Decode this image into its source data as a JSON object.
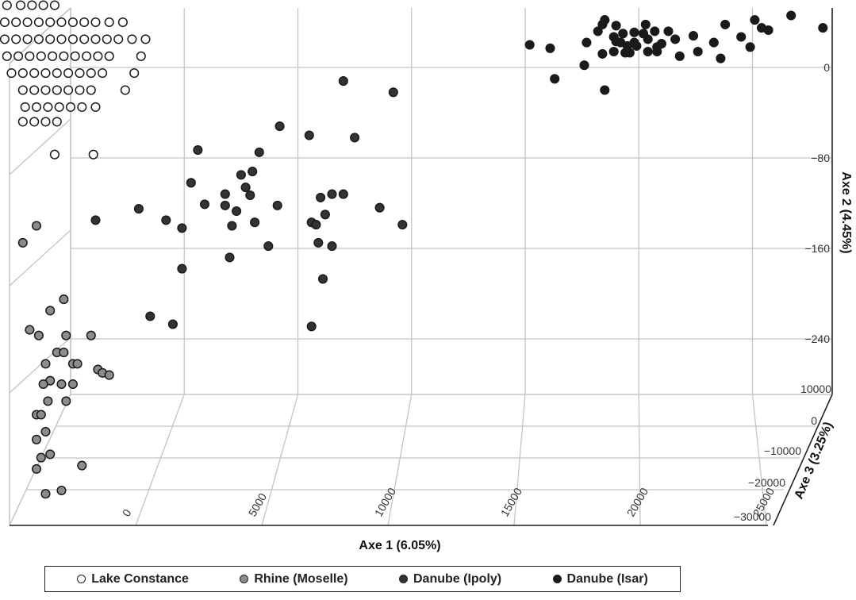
{
  "chart_data": {
    "type": "scatter",
    "projection": "3d",
    "xlabel": "Axe 1 (6.05%)",
    "ylabel": "Axe 2 (4.45%)",
    "zlabel": "Axe 3 (3.25%)",
    "x_ticks": [
      0,
      5000,
      10000,
      15000,
      20000,
      25000
    ],
    "y_ticks": [
      0,
      -80,
      -160,
      -240
    ],
    "z_ticks": [
      10000,
      0,
      -10000,
      -20000,
      -30000
    ],
    "legend_position": "bottom",
    "grid": true,
    "series": [
      {
        "name": "Lake Constance",
        "color": "#ffffff",
        "points": [
          [
            -2800,
            55
          ],
          [
            -2200,
            55
          ],
          [
            -1700,
            55
          ],
          [
            -1200,
            55
          ],
          [
            -700,
            55
          ],
          [
            -2900,
            40
          ],
          [
            -2400,
            40
          ],
          [
            -1900,
            40
          ],
          [
            -1400,
            40
          ],
          [
            -900,
            40
          ],
          [
            -400,
            40
          ],
          [
            100,
            40
          ],
          [
            600,
            40
          ],
          [
            1100,
            40
          ],
          [
            1700,
            40
          ],
          [
            2300,
            40
          ],
          [
            -2900,
            25
          ],
          [
            -2400,
            25
          ],
          [
            -1900,
            25
          ],
          [
            -1400,
            25
          ],
          [
            -900,
            25
          ],
          [
            -400,
            25
          ],
          [
            100,
            25
          ],
          [
            600,
            25
          ],
          [
            1100,
            25
          ],
          [
            1600,
            25
          ],
          [
            2100,
            25
          ],
          [
            2700,
            25
          ],
          [
            3300,
            25
          ],
          [
            -2800,
            10
          ],
          [
            -2300,
            10
          ],
          [
            -1800,
            10
          ],
          [
            -1300,
            10
          ],
          [
            -800,
            10
          ],
          [
            -300,
            10
          ],
          [
            200,
            10
          ],
          [
            700,
            10
          ],
          [
            1200,
            10
          ],
          [
            1700,
            10
          ],
          [
            3100,
            10
          ],
          [
            -2600,
            -5
          ],
          [
            -2100,
            -5
          ],
          [
            -1600,
            -5
          ],
          [
            -1100,
            -5
          ],
          [
            -600,
            -5
          ],
          [
            -100,
            -5
          ],
          [
            400,
            -5
          ],
          [
            900,
            -5
          ],
          [
            1400,
            -5
          ],
          [
            2800,
            -5
          ],
          [
            -2100,
            -20
          ],
          [
            -1600,
            -20
          ],
          [
            -1100,
            -20
          ],
          [
            -600,
            -20
          ],
          [
            -100,
            -20
          ],
          [
            400,
            -20
          ],
          [
            900,
            -20
          ],
          [
            2400,
            -20
          ],
          [
            -2000,
            -35
          ],
          [
            -1500,
            -35
          ],
          [
            -1000,
            -35
          ],
          [
            -500,
            -35
          ],
          [
            0,
            -35
          ],
          [
            500,
            -35
          ],
          [
            1100,
            -35
          ],
          [
            -2100,
            -48
          ],
          [
            -1600,
            -48
          ],
          [
            -1100,
            -48
          ],
          [
            -600,
            -48
          ],
          [
            -700,
            -77
          ],
          [
            1000,
            -77
          ]
        ]
      },
      {
        "name": "Rhine (Moselle)",
        "color": "#8c8c8c",
        "points": [
          [
            -1500,
            -140
          ],
          [
            -2100,
            -155
          ],
          [
            -300,
            -205
          ],
          [
            -900,
            -215
          ],
          [
            -1800,
            -232
          ],
          [
            -1400,
            -237
          ],
          [
            -200,
            -237
          ],
          [
            900,
            -237
          ],
          [
            -600,
            -252
          ],
          [
            -300,
            -252
          ],
          [
            -1100,
            -262
          ],
          [
            100,
            -262
          ],
          [
            300,
            -262
          ],
          [
            1200,
            -267
          ],
          [
            1400,
            -270
          ],
          [
            1700,
            -272
          ],
          [
            -900,
            -277
          ],
          [
            -1200,
            -280
          ],
          [
            -400,
            -280
          ],
          [
            100,
            -280
          ],
          [
            -1000,
            -295
          ],
          [
            -200,
            -295
          ],
          [
            -1500,
            -307
          ],
          [
            -1300,
            -307
          ],
          [
            -1100,
            -322
          ],
          [
            -1500,
            -329
          ],
          [
            -900,
            -342
          ],
          [
            -1300,
            -345
          ],
          [
            -1500,
            -355
          ],
          [
            500,
            -352
          ],
          [
            -1100,
            -377
          ],
          [
            -400,
            -374
          ]
        ]
      },
      {
        "name": "Danube (Ipoly)",
        "color": "#333333",
        "points": [
          [
            12000,
            -12
          ],
          [
            14200,
            -22
          ],
          [
            9200,
            -52
          ],
          [
            10500,
            -60
          ],
          [
            12500,
            -62
          ],
          [
            5600,
            -73
          ],
          [
            8300,
            -75
          ],
          [
            8000,
            -92
          ],
          [
            7500,
            -95
          ],
          [
            5300,
            -102
          ],
          [
            7700,
            -106
          ],
          [
            6800,
            -112
          ],
          [
            11500,
            -112
          ],
          [
            12000,
            -112
          ],
          [
            7900,
            -113
          ],
          [
            11000,
            -115
          ],
          [
            5900,
            -121
          ],
          [
            6800,
            -122
          ],
          [
            9100,
            -122
          ],
          [
            13600,
            -124
          ],
          [
            3000,
            -125
          ],
          [
            7300,
            -127
          ],
          [
            11200,
            -130
          ],
          [
            1100,
            -135
          ],
          [
            4200,
            -135
          ],
          [
            8100,
            -137
          ],
          [
            10600,
            -137
          ],
          [
            10800,
            -139
          ],
          [
            7100,
            -140
          ],
          [
            4900,
            -142
          ],
          [
            14600,
            -139
          ],
          [
            10900,
            -155
          ],
          [
            11500,
            -158
          ],
          [
            8700,
            -158
          ],
          [
            7000,
            -168
          ],
          [
            4900,
            -178
          ],
          [
            11100,
            -187
          ],
          [
            3500,
            -220
          ],
          [
            4500,
            -227
          ],
          [
            10600,
            -229
          ]
        ]
      },
      {
        "name": "Danube (Isar)",
        "color": "#1a1a1a",
        "points": [
          [
            20200,
            20
          ],
          [
            21100,
            17
          ],
          [
            22700,
            22
          ],
          [
            23400,
            12
          ],
          [
            24400,
            13
          ],
          [
            24800,
            22
          ],
          [
            25200,
            30
          ],
          [
            25300,
            38
          ],
          [
            25700,
            32
          ],
          [
            26300,
            32
          ],
          [
            26600,
            25
          ],
          [
            27400,
            28
          ],
          [
            28300,
            22
          ],
          [
            28800,
            38
          ],
          [
            29500,
            27
          ],
          [
            30100,
            42
          ],
          [
            30400,
            35
          ],
          [
            30700,
            33
          ],
          [
            29900,
            18
          ],
          [
            28600,
            8
          ],
          [
            27600,
            14
          ],
          [
            26800,
            10
          ],
          [
            25800,
            18
          ],
          [
            24900,
            19
          ],
          [
            24200,
            22
          ],
          [
            23900,
            27
          ],
          [
            23200,
            32
          ],
          [
            23400,
            38
          ],
          [
            24000,
            37
          ],
          [
            23500,
            42
          ],
          [
            24000,
            23
          ],
          [
            24300,
            30
          ],
          [
            24800,
            31
          ],
          [
            25400,
            25
          ],
          [
            26000,
            21
          ],
          [
            23900,
            14
          ],
          [
            24600,
            13
          ],
          [
            25400,
            14
          ],
          [
            25800,
            14
          ],
          [
            24500,
            19
          ],
          [
            22600,
            2
          ],
          [
            21300,
            -10
          ],
          [
            23500,
            -20
          ],
          [
            31700,
            46
          ],
          [
            33100,
            35
          ]
        ]
      }
    ]
  }
}
